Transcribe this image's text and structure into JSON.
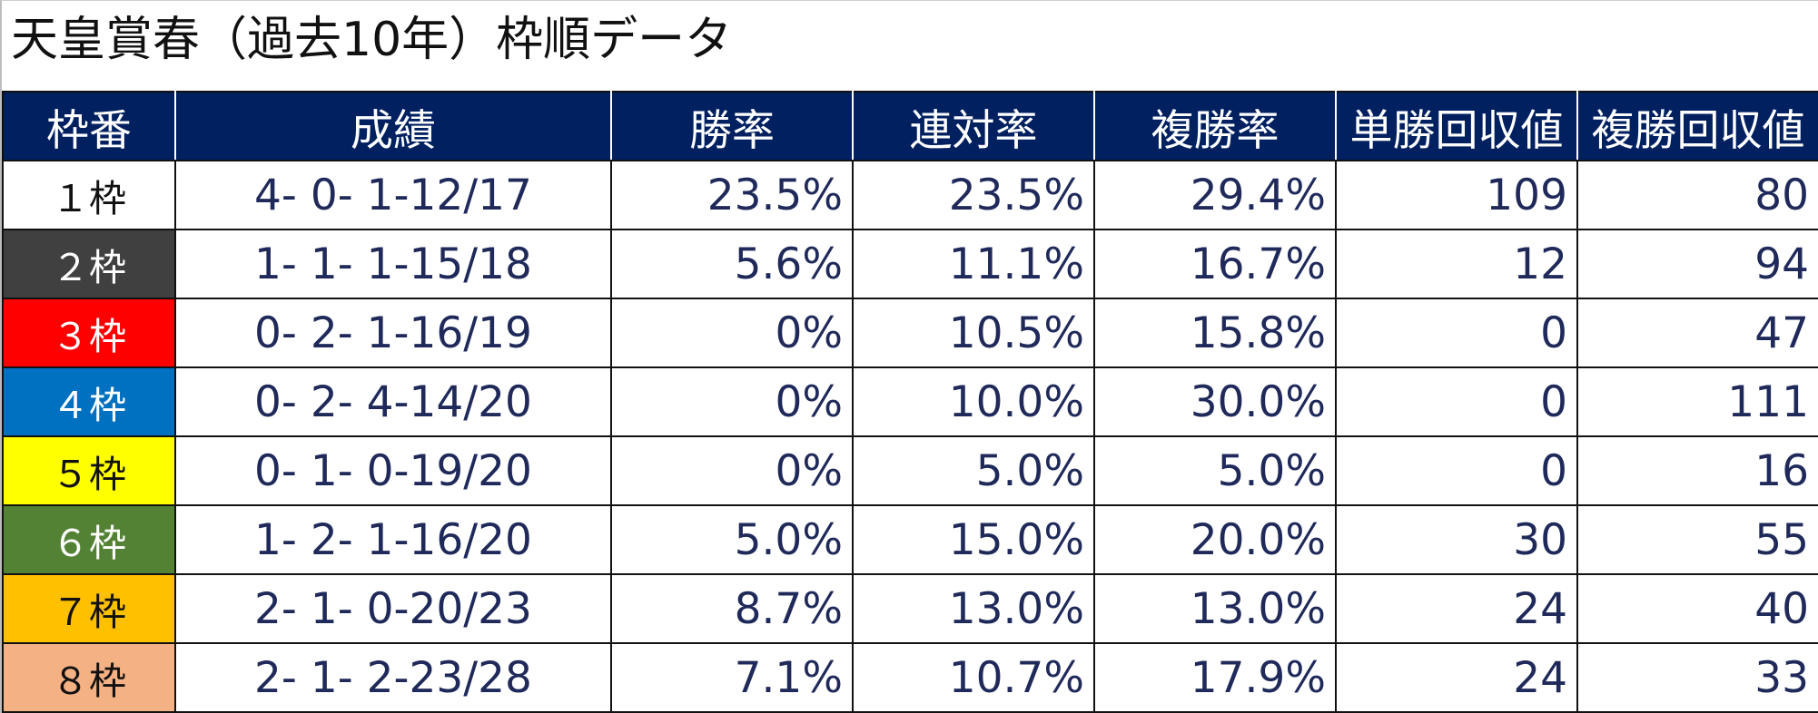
{
  "title": "天皇賞春（過去10年）枠順データ",
  "table": {
    "headers": [
      "枠番",
      "成績",
      "勝率",
      "連対率",
      "複勝率",
      "単勝回収値",
      "複勝回収値"
    ],
    "rows": [
      {
        "frame": "１枠",
        "record": "4- 0- 1-12/17",
        "win_rate": "23.5%",
        "quinella_rate": "23.5%",
        "show_rate": "29.4%",
        "win_return": "109",
        "show_return": "80",
        "bg": "#ffffff",
        "fg": "#111111"
      },
      {
        "frame": "２枠",
        "record": "1- 1- 1-15/18",
        "win_rate": "5.6%",
        "quinella_rate": "11.1%",
        "show_rate": "16.7%",
        "win_return": "12",
        "show_return": "94",
        "bg": "#404040",
        "fg": "#ffffff"
      },
      {
        "frame": "３枠",
        "record": "0- 2- 1-16/19",
        "win_rate": "0%",
        "quinella_rate": "10.5%",
        "show_rate": "15.8%",
        "win_return": "0",
        "show_return": "47",
        "bg": "#ff0000",
        "fg": "#ffffff"
      },
      {
        "frame": "４枠",
        "record": "0- 2- 4-14/20",
        "win_rate": "0%",
        "quinella_rate": "10.0%",
        "show_rate": "30.0%",
        "win_return": "0",
        "show_return": "111",
        "bg": "#0070c0",
        "fg": "#ffffff"
      },
      {
        "frame": "５枠",
        "record": "0- 1- 0-19/20",
        "win_rate": "0%",
        "quinella_rate": "5.0%",
        "show_rate": "5.0%",
        "win_return": "0",
        "show_return": "16",
        "bg": "#ffff00",
        "fg": "#111111"
      },
      {
        "frame": "６枠",
        "record": "1- 2- 1-16/20",
        "win_rate": "5.0%",
        "quinella_rate": "15.0%",
        "show_rate": "20.0%",
        "win_return": "30",
        "show_return": "55",
        "bg": "#548235",
        "fg": "#ffffff"
      },
      {
        "frame": "７枠",
        "record": "2- 1- 0-20/23",
        "win_rate": "8.7%",
        "quinella_rate": "13.0%",
        "show_rate": "13.0%",
        "win_return": "24",
        "show_return": "40",
        "bg": "#ffc000",
        "fg": "#111111"
      },
      {
        "frame": "８枠",
        "record": "2- 1- 2-23/28",
        "win_rate": "7.1%",
        "quinella_rate": "10.7%",
        "show_rate": "17.9%",
        "win_return": "24",
        "show_return": "33",
        "bg": "#f4b183",
        "fg": "#111111"
      }
    ]
  },
  "colors": {
    "header_bg": "#002060",
    "header_text": "#ffffff",
    "body_text": "#1f2a5a"
  }
}
